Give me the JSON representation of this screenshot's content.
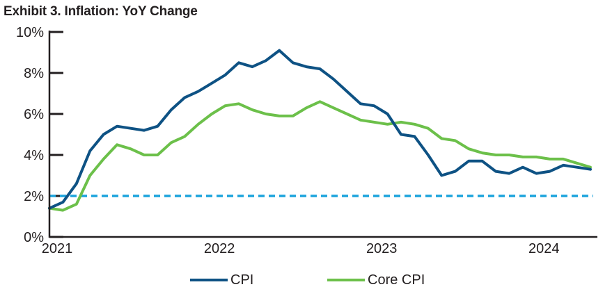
{
  "chart_data": {
    "type": "line",
    "title": "Exhibit 3. Inflation: YoY Change",
    "xlabel": "",
    "ylabel": "",
    "x_ticks": [
      "2021",
      "2022",
      "2023",
      "2024"
    ],
    "y_ticks": [
      "0%",
      "2%",
      "4%",
      "6%",
      "8%",
      "10%"
    ],
    "ylim": [
      0,
      10
    ],
    "xlim": [
      0,
      40
    ],
    "reference_line": {
      "value": 2,
      "style": "dashed",
      "color": "#1ba3dc"
    },
    "series": [
      {
        "name": "CPI",
        "color": "#0e5284",
        "values": [
          1.4,
          1.7,
          2.6,
          4.2,
          5.0,
          5.4,
          5.3,
          5.2,
          5.4,
          6.2,
          6.8,
          7.1,
          7.5,
          7.9,
          8.5,
          8.3,
          8.6,
          9.1,
          8.5,
          8.3,
          8.2,
          7.7,
          7.1,
          6.5,
          6.4,
          6.0,
          5.0,
          4.9,
          4.0,
          3.0,
          3.2,
          3.7,
          3.7,
          3.2,
          3.1,
          3.4,
          3.1,
          3.2,
          3.5,
          3.4,
          3.3
        ]
      },
      {
        "name": "Core CPI",
        "color": "#6cc04a",
        "values": [
          1.4,
          1.3,
          1.6,
          3.0,
          3.8,
          4.5,
          4.3,
          4.0,
          4.0,
          4.6,
          4.9,
          5.5,
          6.0,
          6.4,
          6.5,
          6.2,
          6.0,
          5.9,
          5.9,
          6.3,
          6.6,
          6.3,
          6.0,
          5.7,
          5.6,
          5.5,
          5.6,
          5.5,
          5.3,
          4.8,
          4.7,
          4.3,
          4.1,
          4.0,
          4.0,
          3.9,
          3.9,
          3.8,
          3.8,
          3.6,
          3.4
        ]
      }
    ]
  }
}
